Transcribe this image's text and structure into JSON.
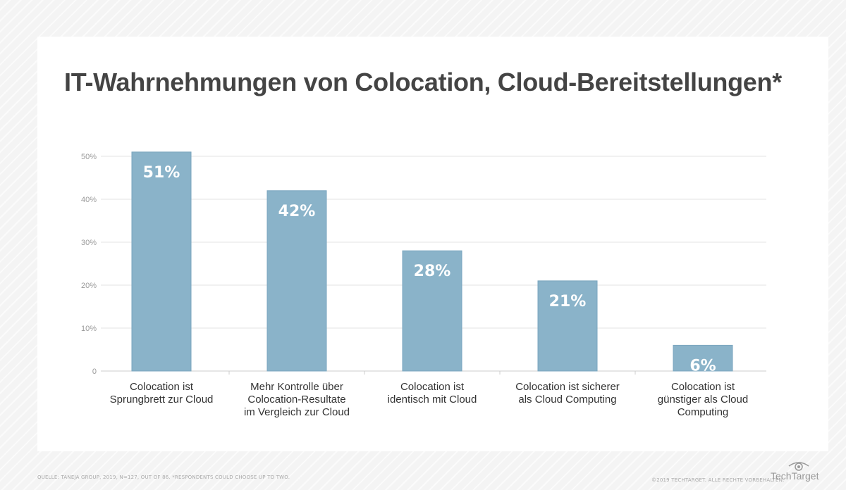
{
  "chart_data": {
    "type": "bar",
    "title": "IT-Wahrnehmungen von Colocation, Cloud-Bereitstellungen*",
    "categories": [
      "Colocation ist\nSprungbrett zur Cloud",
      "Mehr Kontrolle über\nColocation-Resultate\nim Vergleich zur Cloud",
      "Colocation ist\nidentisch mit Cloud",
      "Colocation ist sicherer\nals Cloud Computing",
      "Colocation ist\ngünstiger als Cloud\nComputing"
    ],
    "values": [
      51,
      42,
      28,
      21,
      6
    ],
    "data_labels": [
      "51%",
      "42%",
      "28%",
      "21%",
      "6%"
    ],
    "ylim": [
      0,
      50
    ],
    "yticks": [
      0,
      10,
      20,
      30,
      40,
      50
    ],
    "ytick_labels": [
      "0",
      "10%",
      "20%",
      "30%",
      "40%",
      "50%"
    ],
    "xlabel": "",
    "ylabel": "",
    "grid": true,
    "bar_color": "#8ab3c9",
    "label_color": "#ffffff"
  },
  "footer": {
    "source": "QUELLE: TANEJA GROUP, 2019, N=127, OUT OF 86. *RESPONDENTS COULD CHOOSE UP TO TWO.",
    "copyright": "©2019 TECHTARGET. ALLE RECHTE VORBEHALTEN.",
    "logo": "TechTarget"
  }
}
